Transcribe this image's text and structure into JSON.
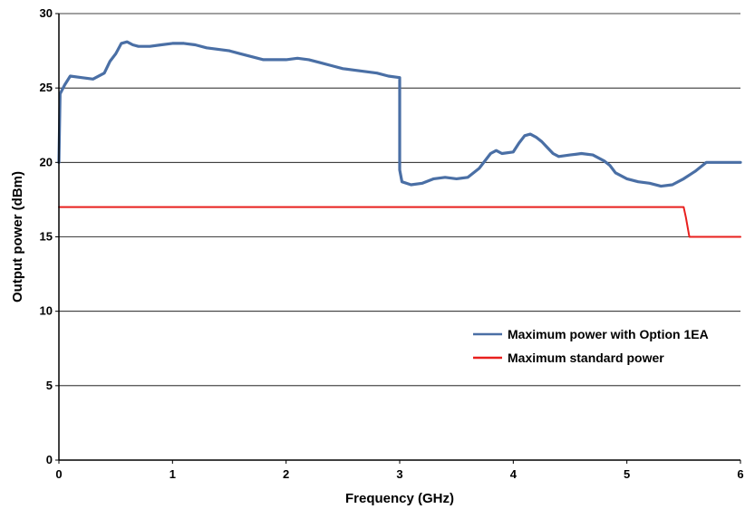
{
  "chart_data": {
    "type": "line",
    "title": "",
    "xlabel": "Frequency (GHz)",
    "ylabel": "Output power (dBm)",
    "xlim": [
      0,
      6
    ],
    "ylim": [
      0,
      30
    ],
    "x_ticks": [
      0,
      1,
      2,
      3,
      4,
      5,
      6
    ],
    "y_ticks": [
      0,
      5,
      10,
      15,
      20,
      25,
      30
    ],
    "grid": "horizontal",
    "legend_position": "right-middle",
    "series": [
      {
        "name": "Maximum power with Option 1EA",
        "color": "#4a6fa5",
        "x": [
          0,
          0.01,
          0.05,
          0.1,
          0.2,
          0.3,
          0.4,
          0.45,
          0.5,
          0.55,
          0.6,
          0.65,
          0.7,
          0.8,
          0.9,
          1.0,
          1.1,
          1.2,
          1.3,
          1.4,
          1.5,
          1.6,
          1.7,
          1.8,
          1.9,
          2.0,
          2.1,
          2.2,
          2.3,
          2.4,
          2.5,
          2.6,
          2.7,
          2.8,
          2.9,
          3.0,
          3.0,
          3.02,
          3.1,
          3.2,
          3.3,
          3.4,
          3.5,
          3.6,
          3.7,
          3.8,
          3.85,
          3.9,
          4.0,
          4.05,
          4.1,
          4.15,
          4.2,
          4.25,
          4.3,
          4.35,
          4.4,
          4.5,
          4.6,
          4.7,
          4.8,
          4.85,
          4.9,
          5.0,
          5.1,
          5.2,
          5.3,
          5.4,
          5.5,
          5.6,
          5.7,
          5.8,
          5.9,
          6.0
        ],
        "y": [
          20.0,
          24.6,
          25.2,
          25.8,
          25.7,
          25.6,
          26.0,
          26.8,
          27.3,
          28.0,
          28.1,
          27.9,
          27.8,
          27.8,
          27.9,
          28.0,
          28.0,
          27.9,
          27.7,
          27.6,
          27.5,
          27.3,
          27.1,
          26.9,
          26.9,
          26.9,
          27.0,
          26.9,
          26.7,
          26.5,
          26.3,
          26.2,
          26.1,
          26.0,
          25.8,
          25.7,
          19.5,
          18.7,
          18.5,
          18.6,
          18.9,
          19.0,
          18.9,
          19.0,
          19.6,
          20.6,
          20.8,
          20.6,
          20.7,
          21.3,
          21.8,
          21.9,
          21.7,
          21.4,
          21.0,
          20.6,
          20.4,
          20.5,
          20.6,
          20.5,
          20.1,
          19.8,
          19.3,
          18.9,
          18.7,
          18.6,
          18.4,
          18.5,
          18.9,
          19.4,
          20.0,
          20.0,
          20.0,
          20.0
        ]
      },
      {
        "name": "Maximum standard power",
        "color": "#e8201e",
        "x": [
          0,
          5.5,
          5.52,
          5.55,
          6.0
        ],
        "y": [
          17.0,
          17.0,
          16.3,
          15.0,
          15.0
        ]
      }
    ]
  }
}
